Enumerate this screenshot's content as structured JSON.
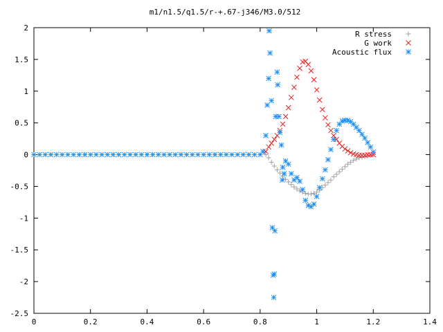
{
  "chart_data": {
    "type": "scatter",
    "title": "m1/n1.5/q1.5/r-+.67-j346/M3.0/512",
    "xlabel": "",
    "ylabel": "",
    "xlim": [
      0,
      1.4
    ],
    "ylim": [
      -2.5,
      2
    ],
    "x_ticks": [
      "0",
      "0.2",
      "0.4",
      "0.6",
      "0.8",
      "1",
      "1.2",
      "1.4"
    ],
    "y_ticks": [
      "2",
      "1.5",
      "1",
      "0.5",
      "0",
      "-0.5",
      "-1",
      "-1.5",
      "-2",
      "-2.5"
    ],
    "x_tick_values": [
      0,
      0.2,
      0.4,
      0.6,
      0.8,
      1.0,
      1.2,
      1.4
    ],
    "y_tick_values": [
      2,
      1.5,
      1,
      0.5,
      0,
      -0.5,
      -1,
      -1.5,
      -2,
      -2.5
    ],
    "grid": false,
    "legend_position": "top-right",
    "series": [
      {
        "name": "R stress",
        "marker": "plus",
        "color": "#a0a0a0",
        "points": [
          [
            0.82,
            0.0
          ],
          [
            0.83,
            -0.05
          ],
          [
            0.84,
            -0.12
          ],
          [
            0.85,
            -0.18
          ],
          [
            0.86,
            -0.24
          ],
          [
            0.87,
            -0.29
          ],
          [
            0.88,
            -0.34
          ],
          [
            0.89,
            -0.39
          ],
          [
            0.9,
            -0.43
          ],
          [
            0.91,
            -0.47
          ],
          [
            0.92,
            -0.51
          ],
          [
            0.93,
            -0.54
          ],
          [
            0.94,
            -0.57
          ],
          [
            0.95,
            -0.59
          ],
          [
            0.96,
            -0.61
          ],
          [
            0.97,
            -0.62
          ],
          [
            0.98,
            -0.62
          ],
          [
            0.99,
            -0.61
          ],
          [
            1.0,
            -0.59
          ],
          [
            1.01,
            -0.56
          ],
          [
            1.02,
            -0.52
          ],
          [
            1.03,
            -0.48
          ],
          [
            1.04,
            -0.44
          ],
          [
            1.05,
            -0.4
          ],
          [
            1.06,
            -0.35
          ],
          [
            1.07,
            -0.31
          ],
          [
            1.08,
            -0.27
          ],
          [
            1.09,
            -0.23
          ],
          [
            1.1,
            -0.19
          ],
          [
            1.11,
            -0.15
          ],
          [
            1.12,
            -0.12
          ],
          [
            1.13,
            -0.09
          ],
          [
            1.14,
            -0.07
          ],
          [
            1.15,
            -0.05
          ],
          [
            1.16,
            -0.04
          ],
          [
            1.17,
            -0.03
          ],
          [
            1.18,
            -0.02
          ],
          [
            1.19,
            -0.01
          ],
          [
            1.2,
            0.0
          ]
        ]
      },
      {
        "name": "G work",
        "marker": "cross",
        "color": "#e8201e",
        "points": [
          [
            0.82,
            0.05
          ],
          [
            0.83,
            0.12
          ],
          [
            0.84,
            0.18
          ],
          [
            0.85,
            0.24
          ],
          [
            0.86,
            0.3
          ],
          [
            0.87,
            0.38
          ],
          [
            0.88,
            0.48
          ],
          [
            0.89,
            0.6
          ],
          [
            0.9,
            0.74
          ],
          [
            0.91,
            0.9
          ],
          [
            0.92,
            1.06
          ],
          [
            0.93,
            1.22
          ],
          [
            0.94,
            1.36
          ],
          [
            0.95,
            1.46
          ],
          [
            0.96,
            1.47
          ],
          [
            0.97,
            1.42
          ],
          [
            0.98,
            1.32
          ],
          [
            0.99,
            1.18
          ],
          [
            1.0,
            1.02
          ],
          [
            1.01,
            0.86
          ],
          [
            1.02,
            0.71
          ],
          [
            1.03,
            0.58
          ],
          [
            1.04,
            0.47
          ],
          [
            1.05,
            0.38
          ],
          [
            1.06,
            0.3
          ],
          [
            1.07,
            0.24
          ],
          [
            1.08,
            0.18
          ],
          [
            1.09,
            0.13
          ],
          [
            1.1,
            0.09
          ],
          [
            1.11,
            0.06
          ],
          [
            1.12,
            0.03
          ],
          [
            1.13,
            0.01
          ],
          [
            1.14,
            0.0
          ],
          [
            1.15,
            -0.01
          ],
          [
            1.16,
            -0.01
          ],
          [
            1.17,
            -0.01
          ],
          [
            1.18,
            0.0
          ],
          [
            1.19,
            0.0
          ],
          [
            1.2,
            0.0
          ]
        ]
      },
      {
        "name": "Acoustic flux",
        "marker": "star",
        "color": "#1f8ff0",
        "points": [
          [
            0.0,
            0.0
          ],
          [
            0.02,
            0.0
          ],
          [
            0.04,
            0.0
          ],
          [
            0.06,
            0.0
          ],
          [
            0.08,
            0.0
          ],
          [
            0.1,
            0.0
          ],
          [
            0.12,
            0.0
          ],
          [
            0.14,
            0.0
          ],
          [
            0.16,
            0.0
          ],
          [
            0.18,
            0.0
          ],
          [
            0.2,
            0.0
          ],
          [
            0.22,
            0.0
          ],
          [
            0.24,
            0.0
          ],
          [
            0.26,
            0.0
          ],
          [
            0.28,
            0.0
          ],
          [
            0.3,
            0.0
          ],
          [
            0.32,
            0.0
          ],
          [
            0.34,
            0.0
          ],
          [
            0.36,
            0.0
          ],
          [
            0.38,
            0.0
          ],
          [
            0.4,
            0.0
          ],
          [
            0.42,
            0.0
          ],
          [
            0.44,
            0.0
          ],
          [
            0.46,
            0.0
          ],
          [
            0.48,
            0.0
          ],
          [
            0.5,
            0.0
          ],
          [
            0.52,
            0.0
          ],
          [
            0.54,
            0.0
          ],
          [
            0.56,
            0.0
          ],
          [
            0.58,
            0.0
          ],
          [
            0.6,
            0.0
          ],
          [
            0.62,
            0.0
          ],
          [
            0.64,
            0.0
          ],
          [
            0.66,
            0.0
          ],
          [
            0.68,
            0.0
          ],
          [
            0.7,
            0.0
          ],
          [
            0.72,
            0.0
          ],
          [
            0.74,
            0.0
          ],
          [
            0.76,
            0.0
          ],
          [
            0.78,
            0.0
          ],
          [
            0.8,
            0.0
          ],
          [
            0.81,
            0.05
          ],
          [
            0.82,
            0.3
          ],
          [
            0.825,
            0.78
          ],
          [
            0.83,
            1.2
          ],
          [
            0.832,
            1.95
          ],
          [
            0.835,
            1.6
          ],
          [
            0.84,
            0.85
          ],
          [
            0.843,
            -1.15
          ],
          [
            0.846,
            -1.9
          ],
          [
            0.848,
            -2.25
          ],
          [
            0.85,
            -1.88
          ],
          [
            0.852,
            -1.2
          ],
          [
            0.855,
            0.6
          ],
          [
            0.86,
            1.3
          ],
          [
            0.862,
            1.1
          ],
          [
            0.866,
            0.6
          ],
          [
            0.87,
            0.35
          ],
          [
            0.875,
            0.15
          ],
          [
            0.878,
            -0.4
          ],
          [
            0.88,
            -0.2
          ],
          [
            0.885,
            -0.3
          ],
          [
            0.89,
            -0.1
          ],
          [
            0.9,
            -0.15
          ],
          [
            0.91,
            -0.3
          ],
          [
            0.92,
            -0.4
          ],
          [
            0.93,
            -0.36
          ],
          [
            0.94,
            -0.42
          ],
          [
            0.95,
            -0.55
          ],
          [
            0.96,
            -0.72
          ],
          [
            0.97,
            -0.8
          ],
          [
            0.98,
            -0.82
          ],
          [
            0.99,
            -0.78
          ],
          [
            1.0,
            -0.66
          ],
          [
            1.01,
            -0.52
          ],
          [
            1.02,
            -0.38
          ],
          [
            1.03,
            -0.24
          ],
          [
            1.04,
            -0.08
          ],
          [
            1.05,
            0.08
          ],
          [
            1.06,
            0.24
          ],
          [
            1.07,
            0.38
          ],
          [
            1.08,
            0.48
          ],
          [
            1.09,
            0.53
          ],
          [
            1.1,
            0.54
          ],
          [
            1.11,
            0.54
          ],
          [
            1.12,
            0.52
          ],
          [
            1.13,
            0.48
          ],
          [
            1.14,
            0.43
          ],
          [
            1.15,
            0.38
          ],
          [
            1.16,
            0.32
          ],
          [
            1.17,
            0.26
          ],
          [
            1.18,
            0.19
          ],
          [
            1.19,
            0.12
          ],
          [
            1.2,
            0.04
          ]
        ]
      }
    ]
  }
}
